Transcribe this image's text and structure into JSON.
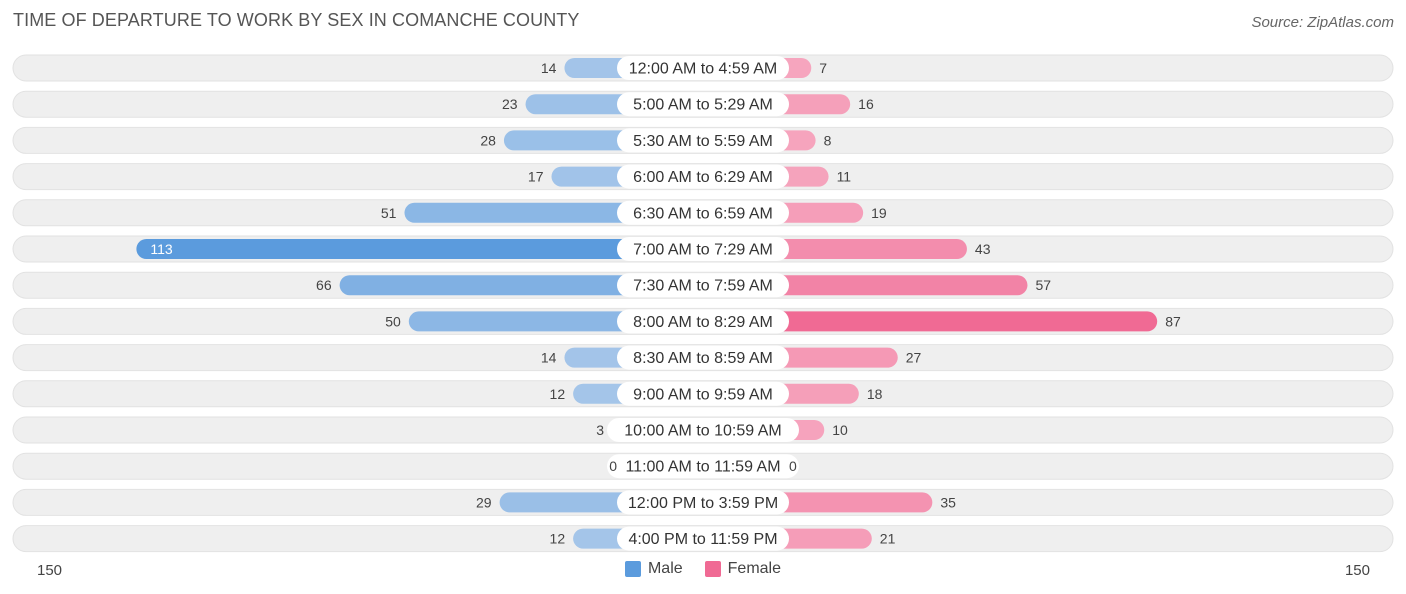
{
  "title": "TIME OF DEPARTURE TO WORK BY SEX IN COMANCHE COUNTY",
  "source": "Source: ZipAtlas.com",
  "axis": {
    "left_label": "150",
    "right_label": "150"
  },
  "legend": {
    "male_label": "Male",
    "female_label": "Female"
  },
  "colors": {
    "male_light": "#a9c8ea",
    "male_dark": "#5b9bdd",
    "female_light": "#f6a8c0",
    "female_dark": "#f06a94",
    "track": "#efefef"
  },
  "chart_data": {
    "type": "bar",
    "orientation": "horizontal-diverging",
    "title": "TIME OF DEPARTURE TO WORK BY SEX IN COMANCHE COUNTY",
    "xlim": [
      -150,
      150
    ],
    "categories": [
      "12:00 AM to 4:59 AM",
      "5:00 AM to 5:29 AM",
      "5:30 AM to 5:59 AM",
      "6:00 AM to 6:29 AM",
      "6:30 AM to 6:59 AM",
      "7:00 AM to 7:29 AM",
      "7:30 AM to 7:59 AM",
      "8:00 AM to 8:29 AM",
      "8:30 AM to 8:59 AM",
      "9:00 AM to 9:59 AM",
      "10:00 AM to 10:59 AM",
      "11:00 AM to 11:59 AM",
      "12:00 PM to 3:59 PM",
      "4:00 PM to 11:59 PM"
    ],
    "series": [
      {
        "name": "Male",
        "values": [
          14,
          23,
          28,
          17,
          51,
          113,
          66,
          50,
          14,
          12,
          3,
          0,
          29,
          12
        ]
      },
      {
        "name": "Female",
        "values": [
          7,
          16,
          8,
          11,
          19,
          43,
          57,
          87,
          27,
          18,
          10,
          0,
          35,
          21
        ]
      }
    ],
    "legend": "bottom-center"
  }
}
